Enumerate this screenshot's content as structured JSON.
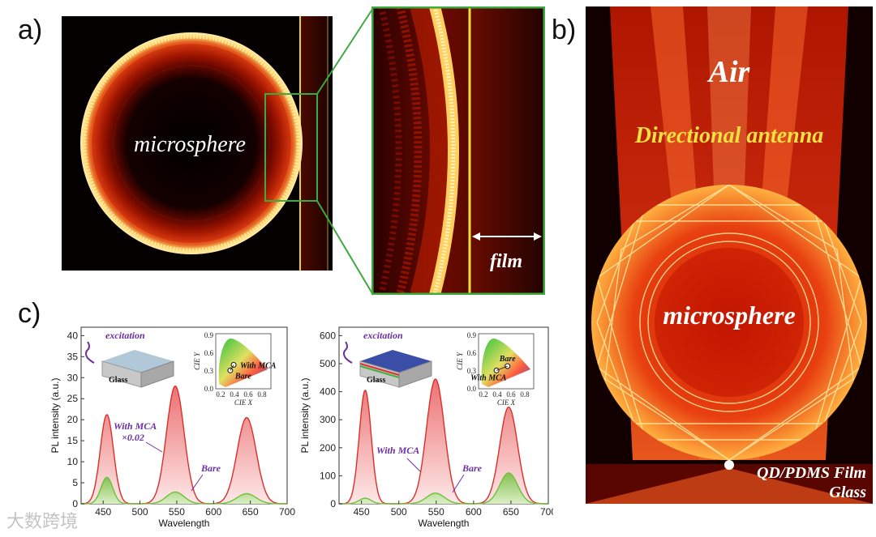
{
  "panel_labels": {
    "a": "a)",
    "b": "b)",
    "c": "c)"
  },
  "panel_a": {
    "sphere_label": "microsphere",
    "zoom_label": "film"
  },
  "panel_b": {
    "title_air": "Air",
    "title_antenna": "Directional antenna",
    "sphere_label": "microsphere",
    "film_label": "QD/PDMS Film",
    "glass_label": "Glass"
  },
  "watermark": "大数跨境",
  "colors": {
    "red_curve": "#d9302a",
    "green_curve": "#6fbf3c",
    "annotation": "#6b2fa0"
  },
  "chart_data": [
    {
      "type": "area",
      "title": "",
      "xlabel": "Wavelength",
      "ylabel": "PL intensity (a.u.)",
      "xlim": [
        420,
        700
      ],
      "ylim": [
        0,
        42
      ],
      "xticks": [
        450,
        500,
        550,
        600,
        650,
        700
      ],
      "yticks": [
        0,
        5,
        10,
        15,
        20,
        25,
        30,
        35,
        40
      ],
      "series": [
        {
          "name": "With MCA ×0.02",
          "color": "red",
          "peaks": [
            [
              455,
              21.2,
              9
            ],
            [
              548,
              28,
              12
            ],
            [
              645,
              20.5,
              13
            ]
          ]
        },
        {
          "name": "Bare",
          "color": "green",
          "peaks": [
            [
              455,
              6.3,
              8
            ],
            [
              548,
              2.8,
              12
            ],
            [
              645,
              2.4,
              13
            ]
          ]
        }
      ],
      "annotations": {
        "excitation": "excitation",
        "glass": "Glass",
        "with_mca": "With MCA",
        "scale": "×0.02",
        "bare": "Bare"
      },
      "inset": {
        "xlabel": "CIE X",
        "ylabel": "CIE Y",
        "xticks": [
          "0.2",
          "0.4",
          "0.6",
          "0.8"
        ],
        "yticks": [
          "0.0",
          "0.3",
          "0.6",
          "0.9"
        ],
        "points": [
          {
            "label": "With MCA",
            "x": 0.31,
            "y": 0.39
          },
          {
            "label": "Bare",
            "x": 0.26,
            "y": 0.3
          }
        ]
      }
    },
    {
      "type": "area",
      "title": "",
      "xlabel": "Wavelength",
      "ylabel": "PL intensity (a.u.)",
      "xlim": [
        420,
        700
      ],
      "ylim": [
        0,
        630
      ],
      "xticks": [
        450,
        500,
        550,
        600,
        650,
        700
      ],
      "yticks": [
        0,
        100,
        200,
        300,
        400,
        500,
        600
      ],
      "series": [
        {
          "name": "With MCA",
          "color": "red",
          "peaks": [
            [
              455,
              405,
              8
            ],
            [
              549,
              445,
              12
            ],
            [
              647,
              345,
              12
            ]
          ]
        },
        {
          "name": "Bare",
          "color": "green",
          "peaks": [
            [
              455,
              20,
              8
            ],
            [
              549,
              38,
              12
            ],
            [
              647,
              110,
              12
            ]
          ]
        }
      ],
      "annotations": {
        "excitation": "excitation",
        "glass": "Glass",
        "with_mca": "With MCA",
        "bare": "Bare"
      },
      "inset": {
        "xlabel": "CIE X",
        "ylabel": "CIE Y",
        "xticks": [
          "0.2",
          "0.4",
          "0.6",
          "0.8"
        ],
        "yticks": [
          "0.0",
          "0.3",
          "0.6",
          "0.9"
        ],
        "points": [
          {
            "label": "Bare",
            "x": 0.47,
            "y": 0.37
          },
          {
            "label": "With MCA",
            "x": 0.31,
            "y": 0.3
          }
        ]
      }
    }
  ]
}
